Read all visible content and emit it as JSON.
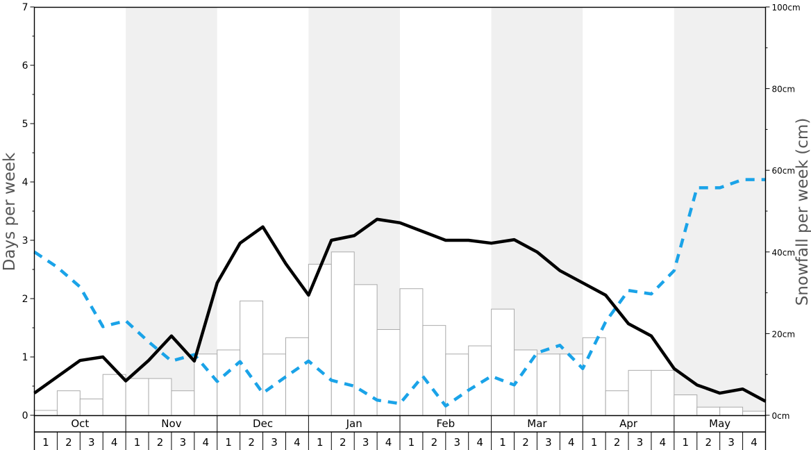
{
  "chart_data": {
    "type": "bar",
    "left_axis": {
      "label": "Days per week",
      "range": [
        0,
        7
      ],
      "ticks": [
        "0",
        "1",
        "2",
        "3",
        "4",
        "5",
        "6",
        "7"
      ]
    },
    "right_axis": {
      "label": "Snowfall per week (cm)",
      "range": [
        0,
        100
      ],
      "ticks": [
        "0cm",
        "20cm",
        "40cm",
        "60cm",
        "80cm",
        "100cm"
      ]
    },
    "months": [
      "Oct",
      "Nov",
      "Dec",
      "Jan",
      "Feb",
      "Mar",
      "Apr",
      "May"
    ],
    "weeks": [
      "1",
      "2",
      "3",
      "4"
    ],
    "month_shading": [
      false,
      true,
      false,
      true,
      false,
      true,
      false,
      true
    ],
    "grid": false,
    "colors": {
      "bars_fill": "#ffffff",
      "bars_stroke": "#aaaaaa",
      "solid_line": "#000000",
      "dashed_line": "#1aa3e8",
      "shade": "#f0f0f0"
    },
    "series": [
      {
        "type": "bar",
        "axis": "right",
        "values": [
          1.2,
          6,
          4,
          10,
          9,
          9,
          6,
          15,
          16,
          28,
          15,
          19,
          37,
          40,
          32,
          21,
          31,
          22,
          15,
          17,
          26,
          16,
          15,
          15,
          19,
          6,
          11,
          11,
          5,
          2,
          2,
          1
        ]
      },
      {
        "type": "line",
        "style": "solid",
        "axis": "left",
        "values": [
          0.38,
          0.66,
          0.94,
          1.0,
          0.59,
          0.94,
          1.36,
          0.93,
          2.27,
          2.95,
          3.23,
          2.6,
          2.06,
          3.0,
          3.08,
          3.36,
          3.3,
          3.15,
          3.0,
          3.0,
          2.95,
          3.01,
          2.8,
          2.48,
          2.27,
          2.06,
          1.57,
          1.36,
          0.8,
          0.52,
          0.38,
          0.45,
          0.24
        ]
      },
      {
        "type": "line",
        "style": "dashed",
        "axis": "left",
        "values": [
          2.8,
          2.54,
          2.2,
          1.52,
          1.62,
          1.26,
          0.93,
          1.04,
          0.58,
          0.92,
          0.38,
          0.66,
          0.93,
          0.6,
          0.5,
          0.26,
          0.2,
          0.67,
          0.16,
          0.43,
          0.67,
          0.52,
          1.07,
          1.2,
          0.8,
          1.6,
          2.14,
          2.08,
          2.48,
          3.9,
          3.9,
          4.04,
          4.04
        ]
      }
    ]
  }
}
